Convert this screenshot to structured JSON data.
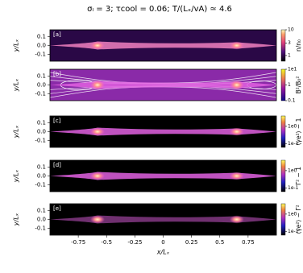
{
  "chart_data": [
    {
      "type": "heatmap",
      "title": "σₗ = 3; τcool = 0.06; T/(Lₓ/vA) ≃ 4.6",
      "panel": "[a]",
      "ylabel": "y/Lₓ",
      "xlim": [
        -1,
        1
      ],
      "ylim": [
        -0.18,
        0.18
      ],
      "yticks": [
        -0.1,
        {
          "value": 0,
          "label": "0.0"
        },
        0.1
      ],
      "colorbar_label": "n/n₀",
      "log": true,
      "clim": [
        0.6,
        10
      ],
      "cticks": [
        1,
        3,
        10
      ]
    },
    {
      "type": "heatmap",
      "panel": "[b]",
      "ylabel": "y/Lₓ",
      "xlim": [
        -1,
        1
      ],
      "ylim": [
        -0.18,
        0.18
      ],
      "yticks": [
        -0.1,
        {
          "value": 0,
          "label": "0.0"
        },
        0.1
      ],
      "colorbar_label": "B²/B₀²",
      "log": true,
      "clim": [
        0.1,
        10
      ],
      "cticks": [
        {
          "value": 10,
          "label": "1e1"
        },
        1,
        0.1
      ]
    },
    {
      "type": "heatmap",
      "panel": "[c]",
      "ylabel": "y/Lₓ",
      "xlim": [
        -1,
        1
      ],
      "ylim": [
        -0.18,
        0.18
      ],
      "yticks": [
        -0.1,
        {
          "value": 0,
          "label": "0.0"
        },
        0.1
      ],
      "colorbar_label": "⟨γe²⟩ − 1",
      "log": true,
      "clim": [
        0.06,
        4
      ],
      "cticks": [
        {
          "value": 1,
          "label": "1e0"
        },
        {
          "value": 0.1,
          "label": "1e-1"
        }
      ]
    },
    {
      "type": "heatmap",
      "panel": "[d]",
      "ylabel": "y/Lₓ",
      "xlim": [
        -1,
        1
      ],
      "ylim": [
        -0.18,
        0.18
      ],
      "yticks": [
        -0.1,
        {
          "value": 0,
          "label": "0.0"
        },
        0.1
      ],
      "colorbar_label": "Γ² − 1",
      "log": true,
      "clim": [
        0.06,
        4
      ],
      "cticks": [
        {
          "value": 1,
          "label": "1e0"
        },
        {
          "value": 0.1,
          "label": "1e-1"
        }
      ]
    },
    {
      "type": "heatmap",
      "panel": "[e]",
      "ylabel": "y/Lₓ",
      "xlabel": "x/Lₓ",
      "xlim": [
        -1,
        1
      ],
      "ylim": [
        -0.18,
        0.18
      ],
      "yticks": [
        -0.1,
        {
          "value": 0,
          "label": "0.0"
        },
        0.1
      ],
      "xticks": [
        -0.75,
        -0.5,
        -0.25,
        0,
        0.25,
        0.5,
        0.75
      ],
      "colorbar_label": "⟨γe²⟩ − Γ²",
      "log": true,
      "clim": [
        0.06,
        4
      ],
      "cticks": [
        {
          "value": 1,
          "label": "1e0"
        },
        {
          "value": 0.1,
          "label": "1e-1"
        }
      ]
    }
  ]
}
